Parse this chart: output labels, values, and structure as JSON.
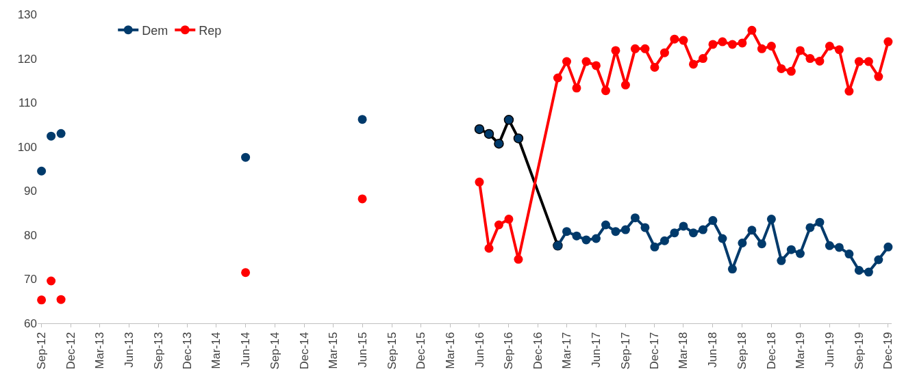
{
  "chart_data": {
    "type": "line",
    "marker": "circle",
    "grid": false,
    "legend": "top left",
    "xlim": [
      "2012-08-20",
      "2019-12-12"
    ],
    "ylim": [
      60,
      130
    ],
    "yticks": [
      60,
      70,
      80,
      90,
      100,
      110,
      120,
      130
    ],
    "xticks": [
      {
        "value": "2012-09",
        "label": "Sep-12"
      },
      {
        "value": "2012-12",
        "label": "Dec-12"
      },
      {
        "value": "2013-03",
        "label": "Mar-13"
      },
      {
        "value": "2013-06",
        "label": "Jun-13"
      },
      {
        "value": "2013-09",
        "label": "Sep-13"
      },
      {
        "value": "2013-12",
        "label": "Dec-13"
      },
      {
        "value": "2014-03",
        "label": "Mar-14"
      },
      {
        "value": "2014-06",
        "label": "Jun-14"
      },
      {
        "value": "2014-09",
        "label": "Sep-14"
      },
      {
        "value": "2014-12",
        "label": "Dec-14"
      },
      {
        "value": "2015-03",
        "label": "Mar-15"
      },
      {
        "value": "2015-06",
        "label": "Jun-15"
      },
      {
        "value": "2015-09",
        "label": "Sep-15"
      },
      {
        "value": "2015-12",
        "label": "Dec-15"
      },
      {
        "value": "2016-03",
        "label": "Mar-16"
      },
      {
        "value": "2016-06",
        "label": "Jun-16"
      },
      {
        "value": "2016-09",
        "label": "Sep-16"
      },
      {
        "value": "2016-12",
        "label": "Dec-16"
      },
      {
        "value": "2017-03",
        "label": "Mar-17"
      },
      {
        "value": "2017-06",
        "label": "Jun-17"
      },
      {
        "value": "2017-09",
        "label": "Sep-17"
      },
      {
        "value": "2017-12",
        "label": "Dec-17"
      },
      {
        "value": "2018-03",
        "label": "Mar-18"
      },
      {
        "value": "2018-06",
        "label": "Jun-18"
      },
      {
        "value": "2018-09",
        "label": "Sep-18"
      },
      {
        "value": "2018-12",
        "label": "Dec-18"
      },
      {
        "value": "2019-03",
        "label": "Mar-19"
      },
      {
        "value": "2019-06",
        "label": "Jun-19"
      },
      {
        "value": "2019-09",
        "label": "Sep-19"
      },
      {
        "value": "2019-12",
        "label": "Dec-19"
      }
    ],
    "series": [
      {
        "color": "#000000",
        "colors": [
          "#003a6b",
          "#003a6b",
          "#003a6b",
          "#003a6b",
          "#003a6b",
          "#003a6b"
        ],
        "x": [
          "2016-06",
          "2016-07",
          "2016-08",
          "2016-09",
          "2016-10",
          "2017-02"
        ],
        "values": [
          104,
          102.9,
          100.7,
          106.1,
          101.9,
          77.6
        ]
      },
      {
        "type": "scatter",
        "color": "#003a6b",
        "x": [
          "2012-09",
          "2012-10",
          "2012-11",
          "2014-06",
          "2015-06"
        ],
        "values": [
          94.5,
          102.4,
          103,
          97.6,
          106.2
        ]
      },
      {
        "type": "scatter",
        "color": "#ff0000",
        "x": [
          "2012-09",
          "2012-10",
          "2012-11",
          "2014-06",
          "2015-06"
        ],
        "values": [
          65.3,
          69.6,
          65.4,
          71.5,
          88.2
        ]
      },
      {
        "name": "Dem",
        "color": "#003a6b",
        "x": [
          "2017-02",
          "2017-03",
          "2017-04",
          "2017-05",
          "2017-06",
          "2017-07",
          "2017-08",
          "2017-09",
          "2017-10",
          "2017-11",
          "2017-12",
          "2018-01",
          "2018-02",
          "2018-03",
          "2018-04",
          "2018-05",
          "2018-06",
          "2018-07",
          "2018-08",
          "2018-09",
          "2018-10",
          "2018-11",
          "2018-12",
          "2019-01",
          "2019-02",
          "2019-03",
          "2019-04",
          "2019-05",
          "2019-06",
          "2019-07",
          "2019-08",
          "2019-09",
          "2019-10",
          "2019-11",
          "2019-12"
        ],
        "values": [
          77.6,
          80.8,
          79.8,
          78.9,
          79.2,
          82.3,
          80.8,
          81.2,
          83.9,
          81.7,
          77.3,
          78.7,
          80.5,
          82,
          80.5,
          81.2,
          83.3,
          79.2,
          72.3,
          78.2,
          81.1,
          78,
          83.6,
          74.2,
          76.7,
          75.8,
          81.7,
          82.9,
          77.6,
          77.2,
          75.7,
          72,
          71.6,
          74.4,
          77.3
        ]
      },
      {
        "name": "Rep",
        "color": "#ff0000",
        "x": [
          "2016-06",
          "2016-07",
          "2016-08",
          "2016-09",
          "2016-10",
          "2017-02",
          "2017-03",
          "2017-04",
          "2017-05",
          "2017-06",
          "2017-07",
          "2017-08",
          "2017-09",
          "2017-10",
          "2017-11",
          "2017-12",
          "2018-01",
          "2018-02",
          "2018-03",
          "2018-04",
          "2018-05",
          "2018-06",
          "2018-07",
          "2018-08",
          "2018-09",
          "2018-10",
          "2018-11",
          "2018-12",
          "2019-01",
          "2019-02",
          "2019-03",
          "2019-04",
          "2019-05",
          "2019-06",
          "2019-07",
          "2019-08",
          "2019-09",
          "2019-10",
          "2019-11",
          "2019-12"
        ],
        "values": [
          92,
          77,
          82.3,
          83.6,
          74.5,
          115.6,
          119.3,
          113.3,
          119.3,
          118.4,
          112.7,
          121.8,
          114,
          122.2,
          122.2,
          118,
          121.3,
          124.4,
          124.1,
          118.7,
          120,
          123.2,
          123.8,
          123.2,
          123.5,
          126.4,
          122.2,
          122.8,
          117.7,
          117.1,
          121.8,
          120,
          119.4,
          122.8,
          122,
          112.6,
          119.3,
          119.3,
          115.9,
          123.8
        ]
      }
    ]
  }
}
